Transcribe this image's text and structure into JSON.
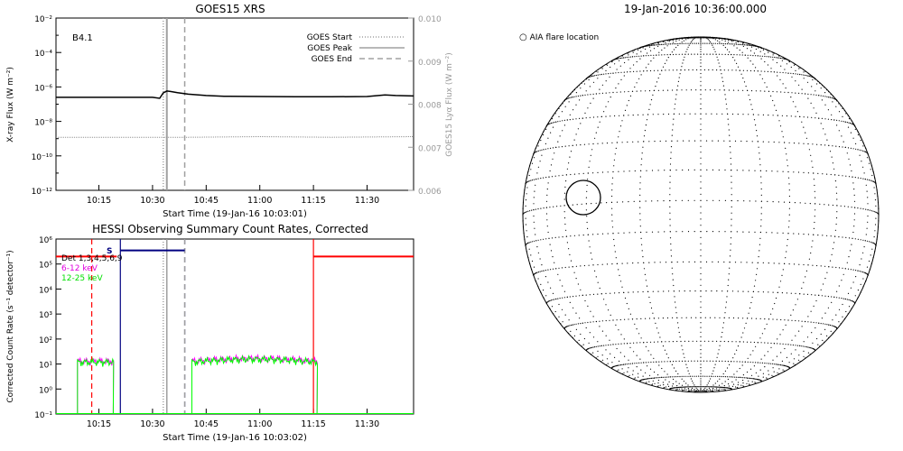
{
  "chart_data": [
    {
      "type": "line",
      "title": "GOES15 XRS",
      "xlabel": "Start Time (19-Jan-16 10:03:01)",
      "ylabel": "X-ray Flux (W m⁻²)",
      "ylabel_right": "GOES15 Lyα Flux (W m⁻²)",
      "xlim": [
        "10:03",
        "11:43"
      ],
      "x_ticks": [
        "10:15",
        "10:30",
        "10:45",
        "11:00",
        "11:15",
        "11:30"
      ],
      "y_scale": "log",
      "ylim": [
        1e-12,
        0.01
      ],
      "y_ticks": [
        "10⁻¹²",
        "10⁻¹⁰",
        "10⁻⁸",
        "10⁻⁶",
        "10⁻⁴",
        "10⁻²"
      ],
      "y2_ticks": [
        "0.006",
        "0.007",
        "0.008",
        "0.009",
        "0.010"
      ],
      "annotation": "B4.1",
      "legend_position": "top-right",
      "legend": [
        {
          "label": "GOES Start",
          "style": "dotted",
          "color": "#a0a0a0"
        },
        {
          "label": "GOES Peak",
          "style": "solid",
          "color": "#a0a0a0"
        },
        {
          "label": "GOES End",
          "style": "dashed",
          "color": "#a0a0a0"
        }
      ],
      "markers": {
        "start": "10:33",
        "peak": "10:34",
        "end": "10:39"
      },
      "series": [
        {
          "color": "#000000",
          "x": [
            "10:03",
            "10:30",
            "10:32",
            "10:33",
            "10:34",
            "10:35",
            "10:37",
            "10:40",
            "10:45",
            "10:50",
            "11:00",
            "11:10",
            "11:20",
            "11:30",
            "11:35",
            "11:38",
            "11:43"
          ],
          "values": [
            2.5e-07,
            2.5e-07,
            2.2e-07,
            4.5e-07,
            5.8e-07,
            5.5e-07,
            4.6e-07,
            3.8e-07,
            3.2e-07,
            2.9e-07,
            2.8e-07,
            2.7e-07,
            2.7e-07,
            2.8e-07,
            3.4e-07,
            3.2e-07,
            3e-07
          ]
        },
        {
          "color": "#909090",
          "x": [
            "10:03",
            "10:20",
            "10:40",
            "11:00",
            "11:20",
            "11:43"
          ],
          "values": [
            1.2e-09,
            1.2e-09,
            1.2e-09,
            1.3e-09,
            1.2e-09,
            1.3e-09
          ]
        }
      ]
    },
    {
      "type": "line",
      "title": "HESSI Observing Summary Count Rates, Corrected",
      "xlabel": "Start Time (19-Jan-16 10:03:02)",
      "ylabel": "Corrected Count Rate (s⁻¹ detector⁻¹)",
      "xlim": [
        "10:03",
        "11:43"
      ],
      "x_ticks": [
        "10:15",
        "10:30",
        "10:45",
        "11:00",
        "11:15",
        "11:30"
      ],
      "y_scale": "log",
      "ylim": [
        0.1,
        1000000.0
      ],
      "y_ticks": [
        "10⁻¹",
        "10⁰",
        "10¹",
        "10²",
        "10³",
        "10⁴",
        "10⁵",
        "10⁶"
      ],
      "legend_position": "top-left",
      "legend": [
        {
          "label": "Det 1,3,4,5,6,9",
          "color": "#000000"
        },
        {
          "label": "6-12 keV",
          "color": "#e000e0"
        },
        {
          "label": "12-25 keV",
          "color": "#00e000"
        }
      ],
      "flag_label": "S",
      "series": [
        {
          "color": "#ff00ff",
          "segments": [
            [
              "10:09",
              "10:19"
            ],
            [
              "10:41",
              "11:16"
            ]
          ],
          "level": 13
        },
        {
          "color": "#00ff00",
          "segments": [
            [
              "10:09",
              "10:19"
            ],
            [
              "10:41",
              "11:16"
            ]
          ],
          "level": 12
        }
      ],
      "flag_bars": [
        {
          "color": "#ff0000",
          "x": [
            "10:03",
            "10:20"
          ],
          "value": 200000.0
        },
        {
          "color": "#000080",
          "x": [
            "10:21",
            "10:39"
          ],
          "value": 350000.0
        },
        {
          "color": "#ff0000",
          "x": [
            "11:15",
            "11:43"
          ],
          "value": 200000.0
        }
      ],
      "vertical_lines": [
        {
          "x": "10:13",
          "color": "#ff0000",
          "style": "dashed"
        },
        {
          "x": "10:21",
          "color": "#000080",
          "style": "solid"
        },
        {
          "x": "10:33",
          "color": "#a0a0a0",
          "style": "dotted"
        },
        {
          "x": "10:34",
          "color": "#a0a0a0",
          "style": "solid"
        },
        {
          "x": "10:39",
          "color": "#000080",
          "style": "dashed"
        },
        {
          "x": "10:39",
          "color": "#a0a0a0",
          "style": "dashed"
        },
        {
          "x": "11:15",
          "color": "#ff0000",
          "style": "solid"
        }
      ]
    }
  ],
  "sun_map": {
    "title": "19-Jan-2016 10:36:00.000",
    "legend_label": "AIA flare location"
  }
}
